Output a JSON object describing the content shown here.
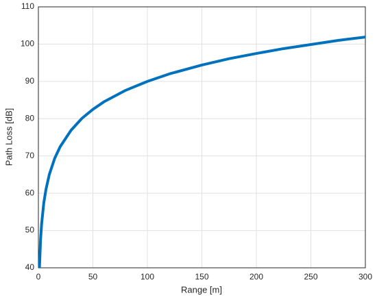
{
  "chart_data": {
    "type": "line",
    "xlabel": "Range [m]",
    "ylabel": "Path Loss [dB]",
    "x": [
      1,
      2,
      3,
      5,
      7,
      10,
      15,
      20,
      30,
      40,
      50,
      60,
      80,
      100,
      120,
      150,
      175,
      200,
      225,
      250,
      275,
      300
    ],
    "series": [
      {
        "color": "#0072bd",
        "values": [
          40,
          47.5,
          51.9,
          57.5,
          61.1,
          65,
          69.4,
          72.5,
          76.9,
          80.1,
          82.5,
          84.5,
          87.6,
          90,
          92.0,
          94.4,
          96.1,
          97.5,
          98.8,
          99.9,
          101.0,
          101.9
        ]
      }
    ],
    "xlim": [
      0,
      300
    ],
    "xticks": [
      0,
      50,
      100,
      150,
      200,
      250,
      300
    ],
    "ylim": [
      40,
      110
    ],
    "yticks": [
      40,
      50,
      60,
      70,
      80,
      90,
      100,
      110
    ],
    "grid": true
  }
}
